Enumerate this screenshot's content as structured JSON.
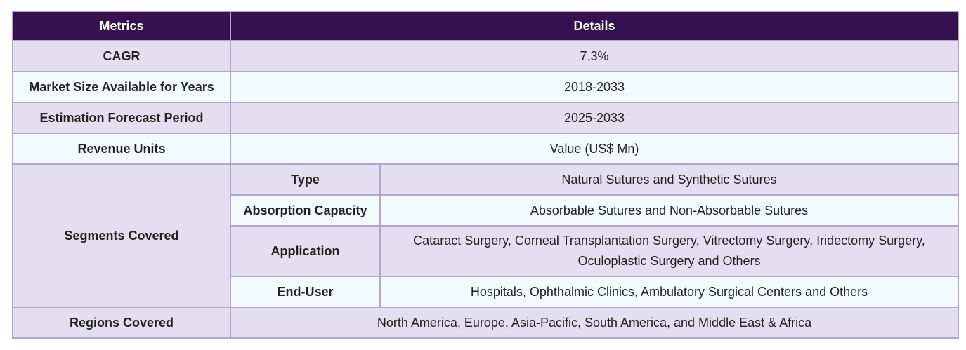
{
  "header": {
    "col1": "Metrics",
    "col2": "Details"
  },
  "rows": {
    "cagr": {
      "metric": "CAGR",
      "value": "7.3%"
    },
    "market_size": {
      "metric": "Market Size Available for Years",
      "value": "2018-2033"
    },
    "forecast": {
      "metric": "Estimation Forecast Period",
      "value": "2025-2033"
    },
    "revenue": {
      "metric": "Revenue Units",
      "value": "Value (US$ Mn)"
    },
    "segments": {
      "metric": "Segments Covered",
      "items": [
        {
          "label": "Type",
          "value": "Natural Sutures and Synthetic Sutures"
        },
        {
          "label": "Absorption Capacity",
          "value": "Absorbable Sutures and Non-Absorbable Sutures"
        },
        {
          "label": "Application",
          "value": "Cataract Surgery, Corneal Transplantation Surgery, Vitrectomy Surgery, Iridectomy Surgery, Oculoplastic Surgery and Others"
        },
        {
          "label": "End-User",
          "value": "Hospitals, Ophthalmic Clinics, Ambulatory Surgical Centers and Others"
        }
      ]
    },
    "regions": {
      "metric": "Regions Covered",
      "value": "North America, Europe, Asia-Pacific, South America, and Middle East & Africa"
    }
  }
}
